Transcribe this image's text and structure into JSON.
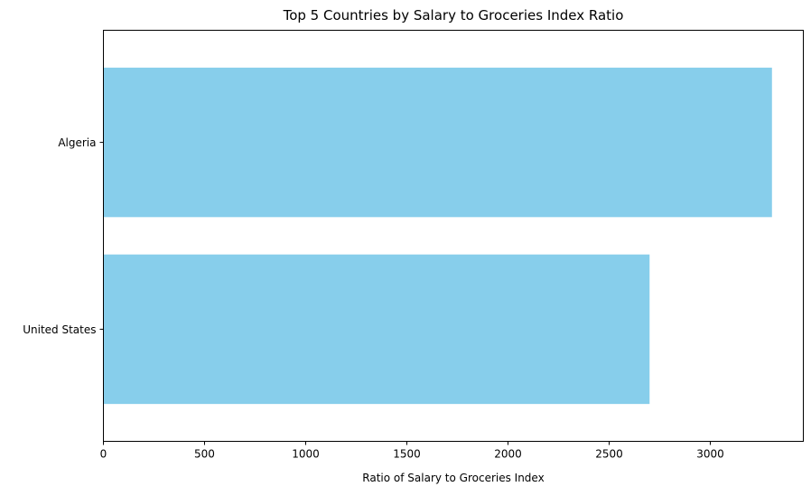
{
  "chart_data": {
    "type": "bar",
    "orientation": "horizontal",
    "title": "Top 5 Countries by Salary to Groceries Index Ratio",
    "xlabel": "Ratio of Salary to Groceries Index",
    "ylabel": "",
    "categories": [
      "Algeria",
      "United States"
    ],
    "values": [
      3305,
      2700
    ],
    "xlim": [
      0,
      3460
    ],
    "xticks": [
      0,
      500,
      1000,
      1500,
      2000,
      2500,
      3000
    ],
    "grid": false,
    "bar_color": "#87ceeb"
  }
}
